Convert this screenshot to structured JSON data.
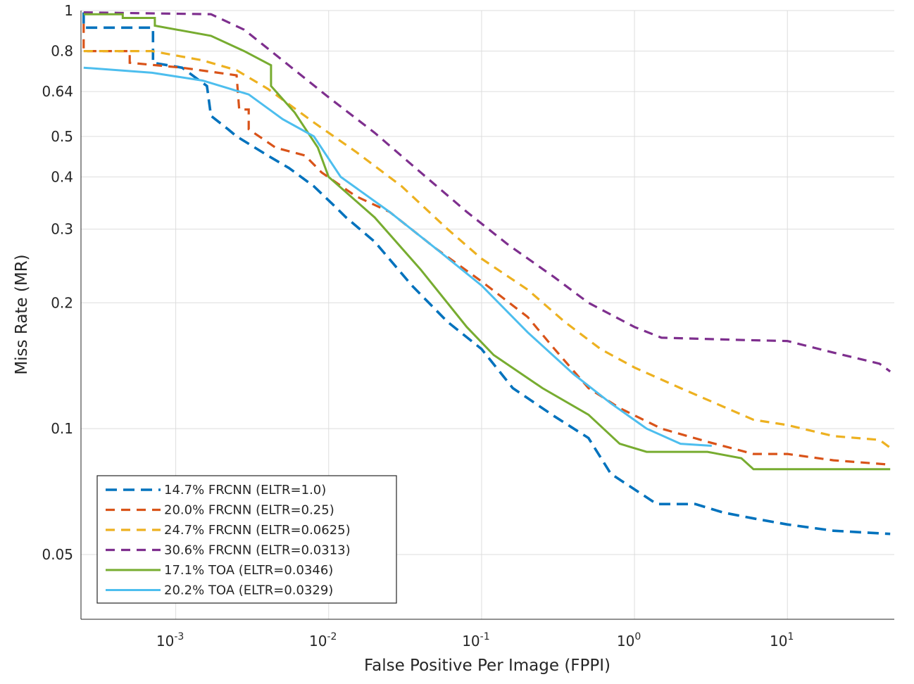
{
  "chart_data": {
    "type": "line",
    "title": "",
    "xlabel": "False Positive Per Image (FPPI)",
    "ylabel": "Miss Rate (MR)",
    "xscale": "log",
    "yscale": "log",
    "xlim": [
      0.00024,
      50
    ],
    "ylim": [
      0.035,
      1
    ],
    "xticks": [
      {
        "value": 0.001,
        "base": "10",
        "exp": "-3"
      },
      {
        "value": 0.01,
        "base": "10",
        "exp": "-2"
      },
      {
        "value": 0.1,
        "base": "10",
        "exp": "-1"
      },
      {
        "value": 1,
        "base": "10",
        "exp": "0"
      },
      {
        "value": 10,
        "base": "10",
        "exp": "1"
      }
    ],
    "yticks": [
      {
        "value": 0.05,
        "label": "0.05"
      },
      {
        "value": 0.1,
        "label": "0.1"
      },
      {
        "value": 0.2,
        "label": "0.2"
      },
      {
        "value": 0.3,
        "label": "0.3"
      },
      {
        "value": 0.4,
        "label": "0.4"
      },
      {
        "value": 0.5,
        "label": "0.5"
      },
      {
        "value": 0.64,
        "label": "0.64"
      },
      {
        "value": 0.8,
        "label": "0.8"
      },
      {
        "value": 1,
        "label": "1"
      }
    ],
    "grid": true,
    "legend_position": "bottom-left",
    "series": [
      {
        "name": "14.7% FRCNN (ELTR=1.0)",
        "color": "#0072bd",
        "dash": "dashed-thick",
        "points": [
          [
            0.00025,
            0.99
          ],
          [
            0.00025,
            0.91
          ],
          [
            0.00071,
            0.91
          ],
          [
            0.00071,
            0.75
          ],
          [
            0.0011,
            0.73
          ],
          [
            0.0016,
            0.66
          ],
          [
            0.0017,
            0.56
          ],
          [
            0.0022,
            0.52
          ],
          [
            0.0025,
            0.5
          ],
          [
            0.004,
            0.45
          ],
          [
            0.0055,
            0.42
          ],
          [
            0.008,
            0.38
          ],
          [
            0.011,
            0.34
          ],
          [
            0.013,
            0.32
          ],
          [
            0.02,
            0.28
          ],
          [
            0.035,
            0.22
          ],
          [
            0.06,
            0.18
          ],
          [
            0.1,
            0.155
          ],
          [
            0.16,
            0.125
          ],
          [
            0.3,
            0.107
          ],
          [
            0.5,
            0.095
          ],
          [
            0.7,
            0.078
          ],
          [
            1.4,
            0.066
          ],
          [
            2.5,
            0.066
          ],
          [
            3.8,
            0.063
          ],
          [
            6,
            0.061
          ],
          [
            10,
            0.059
          ],
          [
            20,
            0.057
          ],
          [
            47,
            0.056
          ]
        ]
      },
      {
        "name": "20.0% FRCNN (ELTR=0.25)",
        "color": "#d95319",
        "dash": "dashed",
        "points": [
          [
            0.00025,
            0.93
          ],
          [
            0.00025,
            0.8
          ],
          [
            0.0005,
            0.8
          ],
          [
            0.0005,
            0.75
          ],
          [
            0.0011,
            0.73
          ],
          [
            0.0025,
            0.7
          ],
          [
            0.0026,
            0.58
          ],
          [
            0.003,
            0.58
          ],
          [
            0.003,
            0.52
          ],
          [
            0.0045,
            0.47
          ],
          [
            0.007,
            0.45
          ],
          [
            0.009,
            0.41
          ],
          [
            0.015,
            0.36
          ],
          [
            0.025,
            0.33
          ],
          [
            0.05,
            0.27
          ],
          [
            0.1,
            0.225
          ],
          [
            0.2,
            0.185
          ],
          [
            0.3,
            0.155
          ],
          [
            0.5,
            0.125
          ],
          [
            0.8,
            0.112
          ],
          [
            1.5,
            0.1
          ],
          [
            3,
            0.093
          ],
          [
            6,
            0.087
          ],
          [
            10,
            0.087
          ],
          [
            20,
            0.084
          ],
          [
            47,
            0.082
          ]
        ]
      },
      {
        "name": "24.7% FRCNN (ELTR=0.0625)",
        "color": "#edb120",
        "dash": "dashed",
        "points": [
          [
            0.00025,
            0.8
          ],
          [
            0.0007,
            0.8
          ],
          [
            0.0015,
            0.76
          ],
          [
            0.0025,
            0.72
          ],
          [
            0.004,
            0.65
          ],
          [
            0.008,
            0.54
          ],
          [
            0.015,
            0.46
          ],
          [
            0.03,
            0.38
          ],
          [
            0.06,
            0.3
          ],
          [
            0.1,
            0.255
          ],
          [
            0.2,
            0.215
          ],
          [
            0.35,
            0.18
          ],
          [
            0.6,
            0.155
          ],
          [
            1,
            0.14
          ],
          [
            2,
            0.125
          ],
          [
            4,
            0.112
          ],
          [
            6,
            0.105
          ],
          [
            10,
            0.102
          ],
          [
            20,
            0.096
          ],
          [
            40,
            0.094
          ],
          [
            47,
            0.09
          ]
        ]
      },
      {
        "name": "30.6% FRCNN (ELTR=0.0313)",
        "color": "#7e2f8e",
        "dash": "dashed",
        "points": [
          [
            0.00025,
            0.99
          ],
          [
            0.0017,
            0.98
          ],
          [
            0.0028,
            0.9
          ],
          [
            0.005,
            0.76
          ],
          [
            0.01,
            0.62
          ],
          [
            0.02,
            0.51
          ],
          [
            0.04,
            0.41
          ],
          [
            0.08,
            0.33
          ],
          [
            0.15,
            0.275
          ],
          [
            0.3,
            0.23
          ],
          [
            0.5,
            0.2
          ],
          [
            1,
            0.175
          ],
          [
            1.5,
            0.165
          ],
          [
            5,
            0.163
          ],
          [
            10,
            0.162
          ],
          [
            20,
            0.152
          ],
          [
            40,
            0.143
          ],
          [
            47,
            0.137
          ]
        ]
      },
      {
        "name": "17.1% TOA (ELTR=0.0346)",
        "color": "#77ac30",
        "dash": "solid",
        "points": [
          [
            0.00025,
            0.98
          ],
          [
            0.00045,
            0.98
          ],
          [
            0.00045,
            0.96
          ],
          [
            0.00073,
            0.96
          ],
          [
            0.00073,
            0.92
          ],
          [
            0.0017,
            0.87
          ],
          [
            0.0028,
            0.8
          ],
          [
            0.0042,
            0.74
          ],
          [
            0.0042,
            0.66
          ],
          [
            0.006,
            0.57
          ],
          [
            0.0085,
            0.47
          ],
          [
            0.01,
            0.4
          ],
          [
            0.02,
            0.32
          ],
          [
            0.04,
            0.24
          ],
          [
            0.08,
            0.175
          ],
          [
            0.12,
            0.15
          ],
          [
            0.25,
            0.125
          ],
          [
            0.5,
            0.108
          ],
          [
            0.8,
            0.092
          ],
          [
            1.2,
            0.088
          ],
          [
            3,
            0.088
          ],
          [
            5,
            0.085
          ],
          [
            6,
            0.08
          ],
          [
            10,
            0.08
          ],
          [
            47,
            0.08
          ]
        ]
      },
      {
        "name": "20.2% TOA (ELTR=0.0329)",
        "color": "#4dbeee",
        "dash": "solid",
        "points": [
          [
            0.00025,
            0.73
          ],
          [
            0.0007,
            0.71
          ],
          [
            0.0015,
            0.68
          ],
          [
            0.003,
            0.63
          ],
          [
            0.005,
            0.55
          ],
          [
            0.008,
            0.5
          ],
          [
            0.012,
            0.4
          ],
          [
            0.025,
            0.33
          ],
          [
            0.05,
            0.27
          ],
          [
            0.1,
            0.22
          ],
          [
            0.2,
            0.17
          ],
          [
            0.4,
            0.135
          ],
          [
            0.7,
            0.115
          ],
          [
            1.2,
            0.1
          ],
          [
            2,
            0.092
          ],
          [
            3.2,
            0.091
          ]
        ]
      }
    ]
  }
}
